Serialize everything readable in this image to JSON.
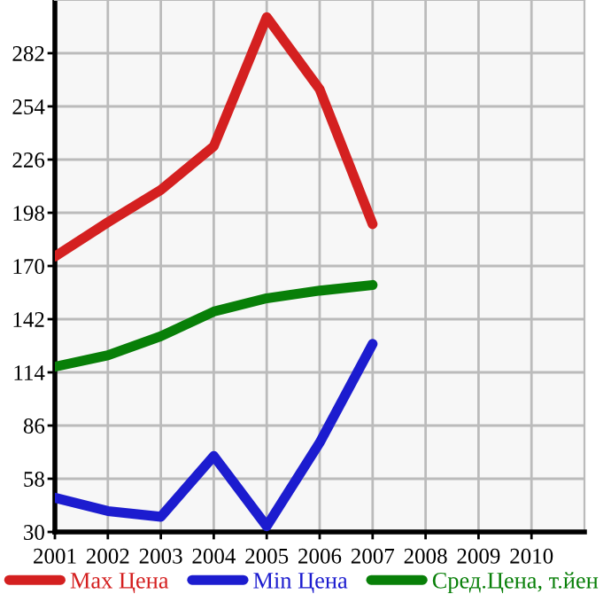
{
  "chart_data": {
    "type": "line",
    "x": [
      2001,
      2002,
      2003,
      2004,
      2005,
      2006,
      2007
    ],
    "series": [
      {
        "name": "Max Цена",
        "color": "#d42020",
        "values": [
          175,
          193,
          210,
          233,
          301,
          263,
          192
        ]
      },
      {
        "name": "Min Цена",
        "color": "#1c1ccf",
        "values": [
          48,
          41,
          38,
          70,
          33,
          77,
          129
        ]
      },
      {
        "name": "Сред.Цена, т.йен",
        "color": "#087f08",
        "values": [
          117,
          123,
          133,
          146,
          153,
          157,
          160
        ]
      }
    ],
    "xlim": [
      2001,
      2011
    ],
    "xticks": [
      2001,
      2002,
      2003,
      2004,
      2005,
      2006,
      2007,
      2008,
      2009,
      2010
    ],
    "ylim": [
      30,
      310
    ],
    "yticks": [
      30,
      58,
      86,
      114,
      142,
      170,
      198,
      226,
      254,
      282
    ],
    "grid": true,
    "legend": "bottom",
    "marker": "none",
    "line_style": "solid"
  }
}
